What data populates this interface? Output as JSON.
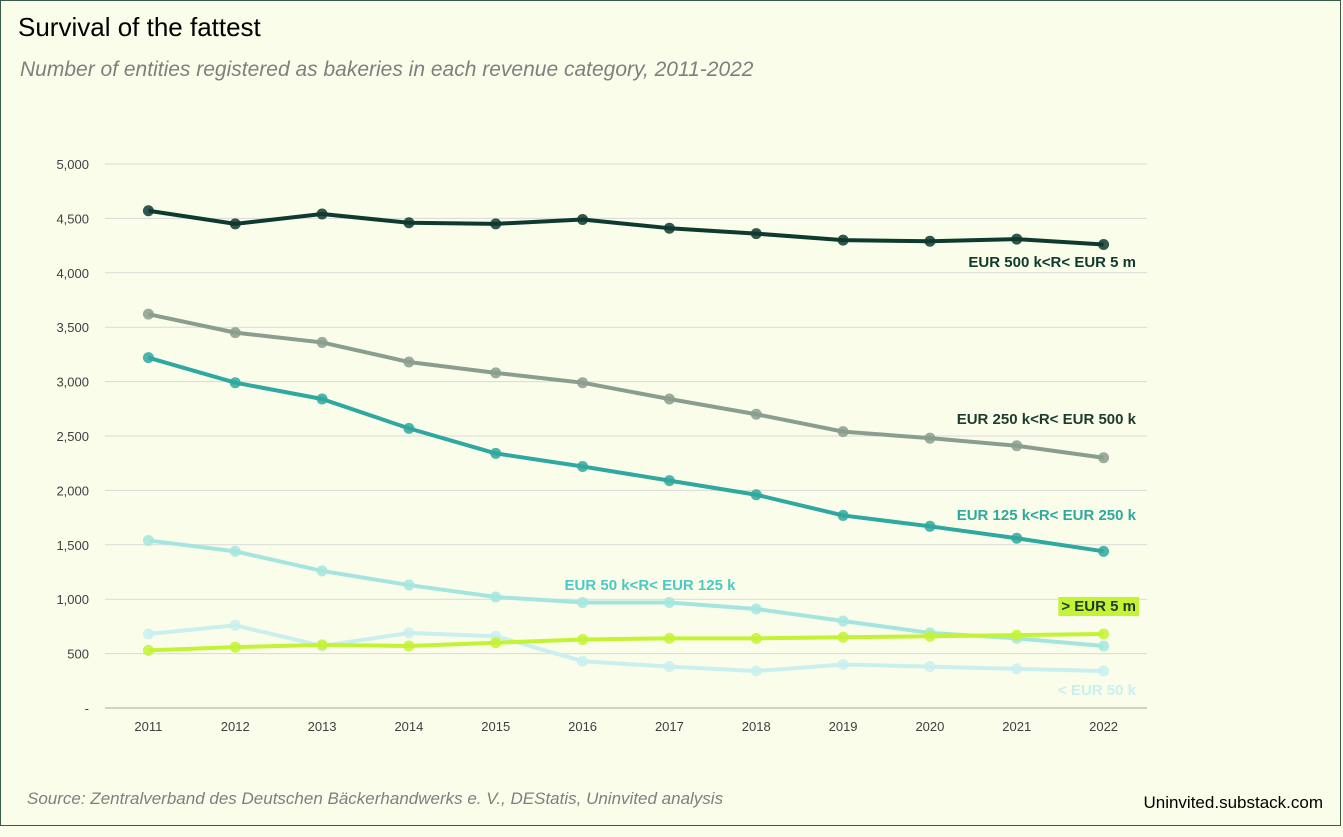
{
  "header": {
    "title": "Survival  of the fattest",
    "subtitle": "Number of entities registered as bakeries in each revenue category, 2011-2022"
  },
  "footer": {
    "source": "Source: Zentralverband des Deutschen Bäckerhandwerks e. V., DEStatis, Uninvited analysis",
    "website": "Uninvited.substack.com"
  },
  "chart_data": {
    "type": "line",
    "x": [
      2011,
      2012,
      2013,
      2014,
      2015,
      2016,
      2017,
      2018,
      2019,
      2020,
      2021,
      2022
    ],
    "y_ticks": [
      "-",
      "500",
      "1,000",
      "1,500",
      "2,000",
      "2,500",
      "3,000",
      "3,500",
      "4,000",
      "4,500",
      "5,000"
    ],
    "ylim": [
      0,
      5000
    ],
    "grid": true,
    "series": [
      {
        "name": "< EUR 50 k",
        "color": "#c9f0ee",
        "values": [
          680,
          760,
          570,
          690,
          660,
          430,
          380,
          340,
          400,
          380,
          360,
          340
        ]
      },
      {
        "name": "EUR 50 k<R< EUR 125 k",
        "color": "#a4e6df",
        "label_color": "#4cc9c4",
        "values": [
          1540,
          1440,
          1260,
          1130,
          1020,
          970,
          970,
          910,
          800,
          690,
          640,
          570
        ]
      },
      {
        "name": "> EUR 5 m",
        "color": "#c4f235",
        "label_bg": "#c4f235",
        "label_color": "#1d3b30",
        "values": [
          530,
          560,
          580,
          570,
          600,
          630,
          640,
          640,
          650,
          660,
          670,
          680
        ]
      },
      {
        "name": "EUR 125 k<R< EUR 250 k",
        "color": "#2fa89f",
        "values": [
          3220,
          2990,
          2840,
          2570,
          2340,
          2220,
          2090,
          1960,
          1770,
          1670,
          1560,
          1440
        ]
      },
      {
        "name": "EUR 250 k<R< EUR 500 k",
        "color": "#8a9e8f",
        "label_color": "#1d3b30",
        "values": [
          3620,
          3450,
          3360,
          3180,
          3080,
          2990,
          2840,
          2700,
          2540,
          2480,
          2410,
          2300
        ]
      },
      {
        "name": "EUR 500 k<R< EUR 5 m",
        "color": "#0f3a30",
        "values": [
          4570,
          4450,
          4540,
          4460,
          4450,
          4490,
          4410,
          4360,
          4300,
          4290,
          4310,
          4260
        ]
      }
    ]
  }
}
